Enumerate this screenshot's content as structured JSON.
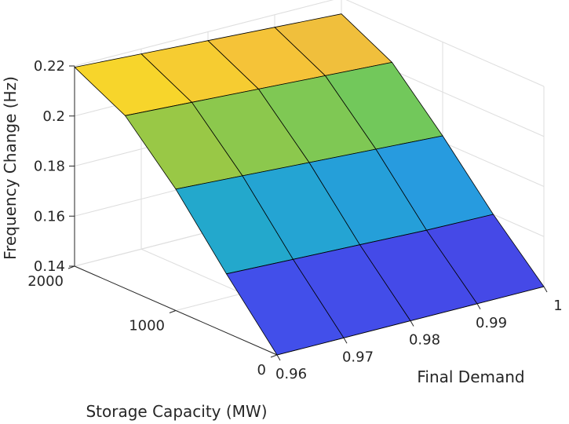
{
  "chart_data": {
    "type": "surface",
    "title": "",
    "xlabel": "Final Demand",
    "ylabel": "Storage Capacity (MW)",
    "zlabel": "Frequency Change (Hz)",
    "x": [
      0.96,
      0.97,
      0.98,
      0.99,
      1.0
    ],
    "y": [
      0,
      500,
      1000,
      1500,
      2000
    ],
    "z": [
      [
        0.14,
        0.14,
        0.14,
        0.14,
        0.14
      ],
      [
        0.1635,
        0.1625,
        0.1615,
        0.1605,
        0.16
      ],
      [
        0.1885,
        0.187,
        0.1855,
        0.184,
        0.1825
      ],
      [
        0.209,
        0.2075,
        0.206,
        0.2045,
        0.203
      ],
      [
        0.2195,
        0.218,
        0.2165,
        0.215,
        0.2135
      ]
    ],
    "xlim": [
      0.96,
      1.0
    ],
    "ylim": [
      0,
      2000
    ],
    "zlim": [
      0.14,
      0.22
    ],
    "x_ticks": [
      "0.96",
      "0.97",
      "0.98",
      "0.99",
      "1"
    ],
    "y_ticks": [
      "0",
      "1000",
      "2000"
    ],
    "z_ticks": [
      "0.14",
      "0.16",
      "0.18",
      "0.2",
      "0.22"
    ],
    "colormap": "parula",
    "grid": true
  }
}
